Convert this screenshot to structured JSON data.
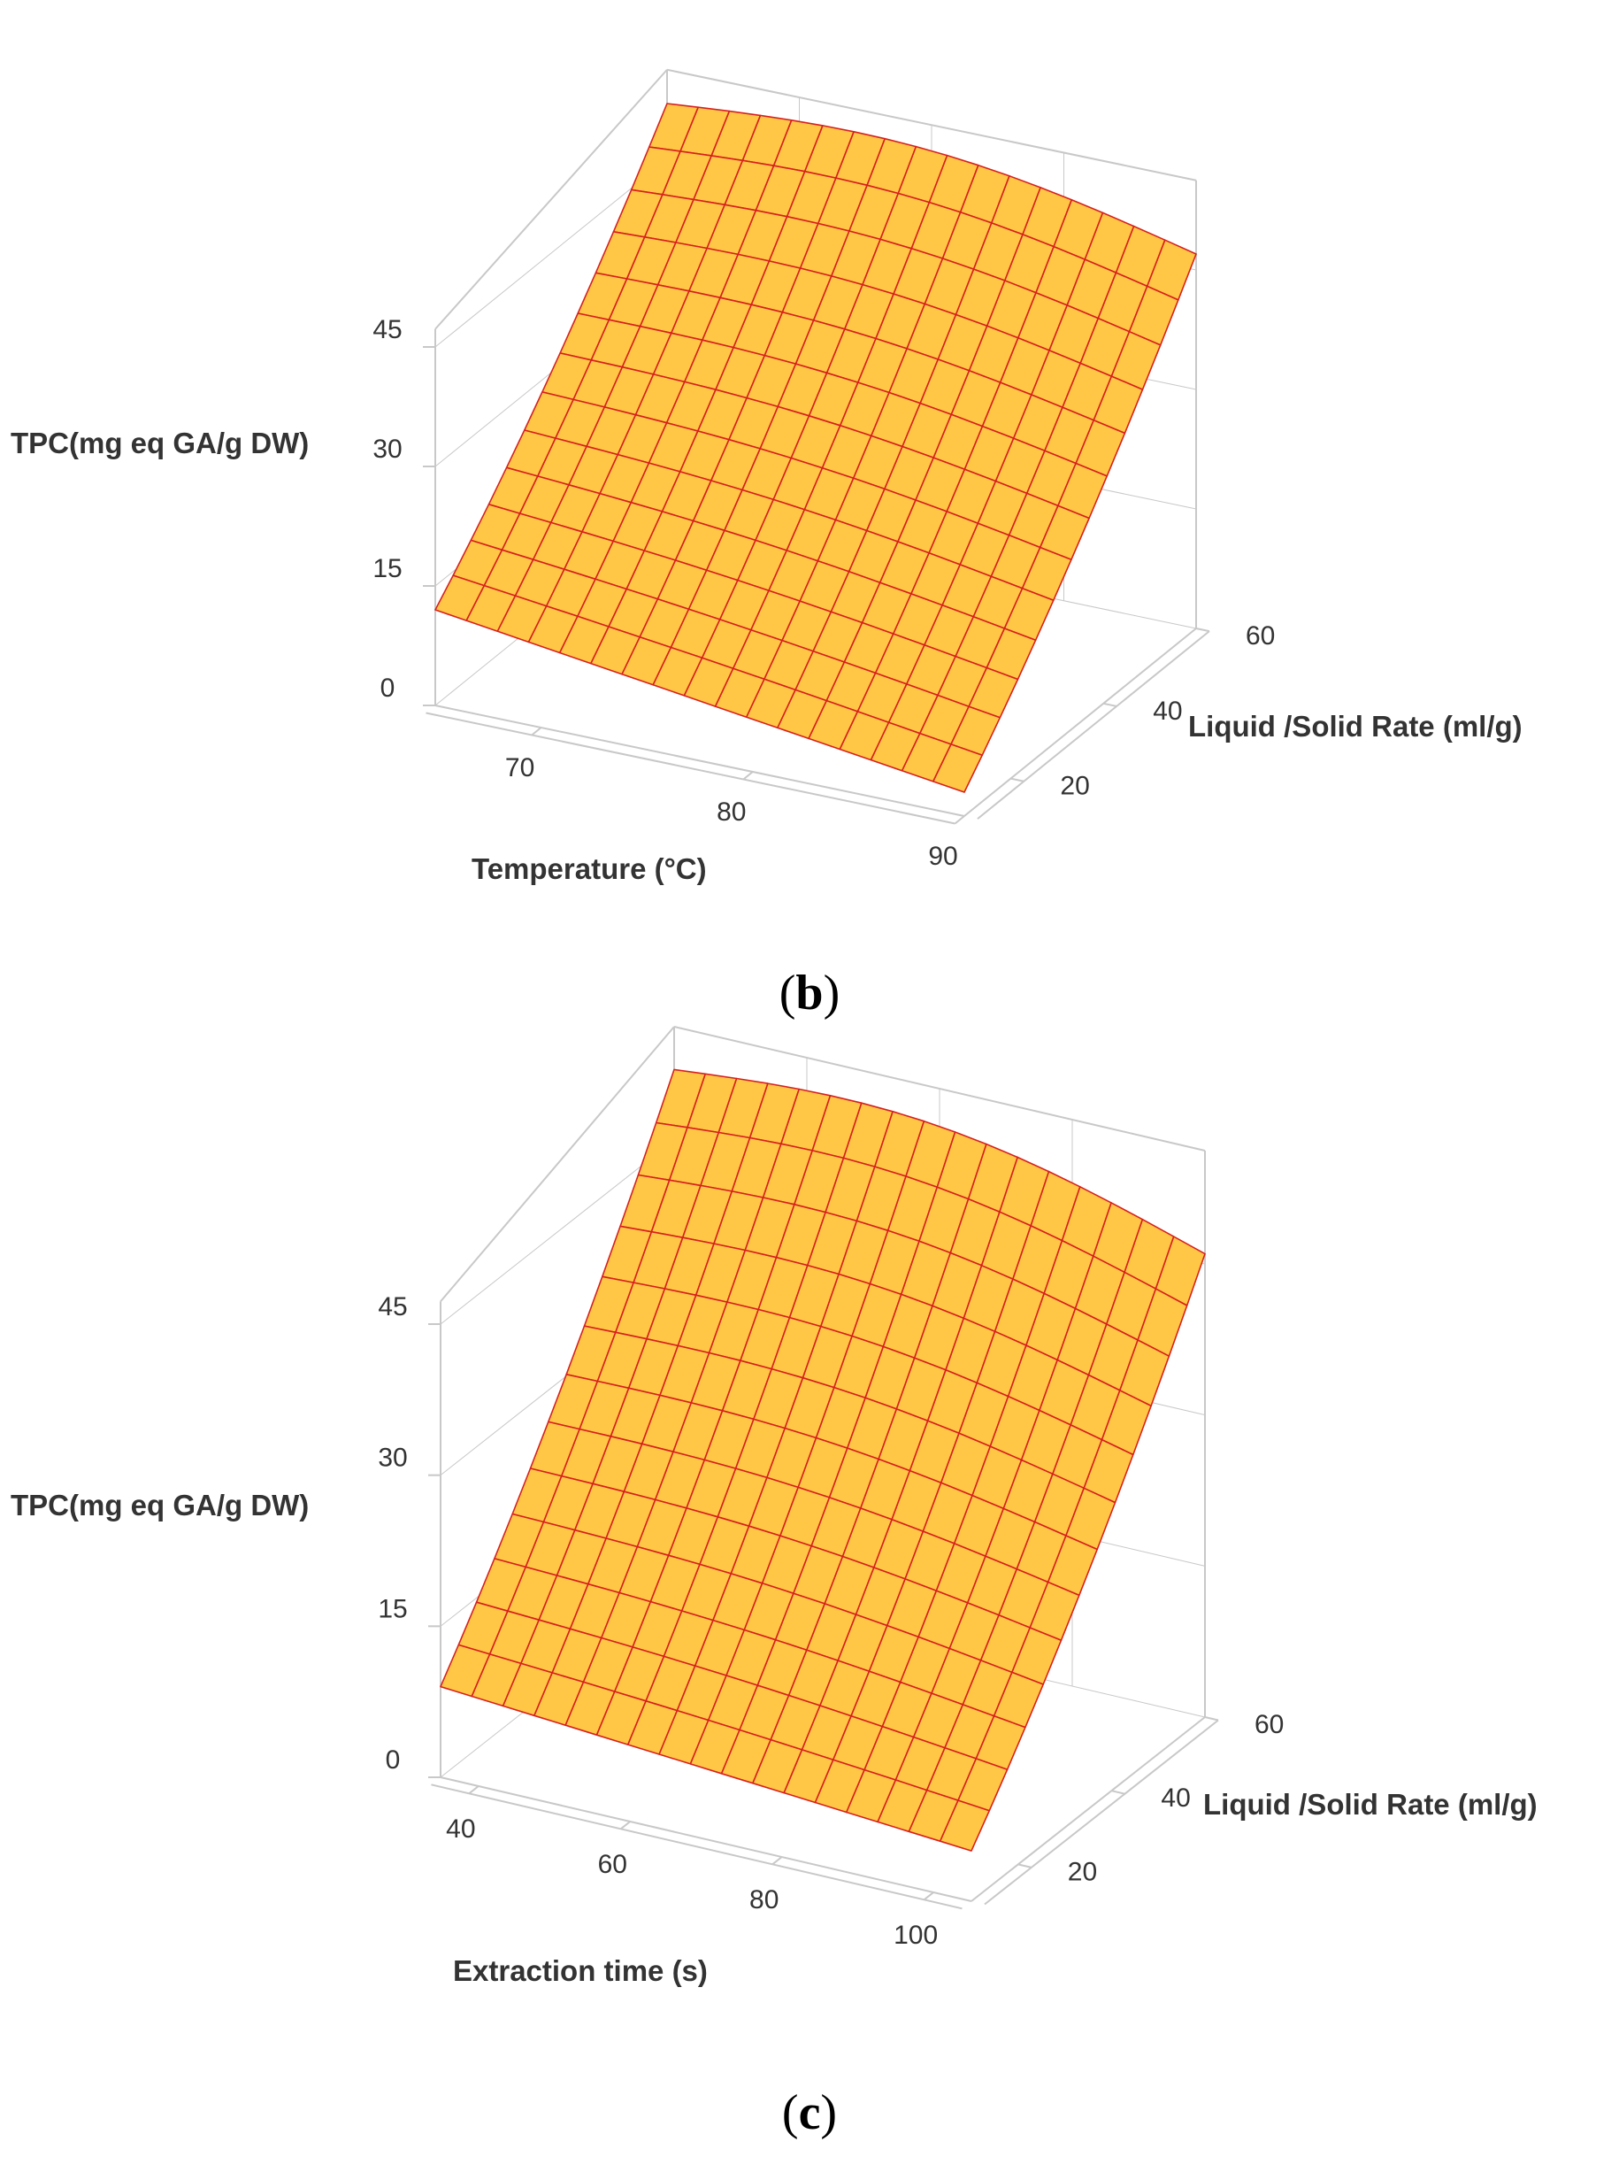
{
  "chart_data": [
    {
      "type": "surface",
      "panel_label": "b",
      "xlabel": "Temperature (°C)",
      "ylabel": "Liquid /Solid Rate (ml/g)",
      "zlabel": "TPC(mg eq GA/g DW)",
      "x_ticks": [
        "70",
        "80",
        "90"
      ],
      "y_ticks": [
        "20",
        "40",
        "60"
      ],
      "z_ticks": [
        "0",
        "15",
        "30",
        "45"
      ],
      "xlim": [
        65,
        90
      ],
      "ylim": [
        10,
        60
      ],
      "zlim": [
        0,
        45
      ],
      "surface": {
        "description_free_grid": true,
        "x": [
          65,
          90
        ],
        "y": [
          10,
          60
        ],
        "corner_z": {
          "x_min_y_min": 12,
          "x_max_y_min": 3,
          "x_min_y_max": 52,
          "x_max_y_max": 47
        },
        "grid_x": 17,
        "grid_y": 13
      },
      "colors": {
        "fill": "#FFC745",
        "mesh": "#D7201E",
        "box": "#C8C8C8"
      }
    },
    {
      "type": "surface",
      "panel_label": "c",
      "xlabel": "Extraction time (s)",
      "ylabel": "Liquid /Solid Rate (ml/g)",
      "zlabel": "TPC(mg eq GA/g DW)",
      "x_ticks": [
        "40",
        "60",
        "80",
        "100"
      ],
      "y_ticks": [
        "20",
        "40",
        "60"
      ],
      "z_ticks": [
        "0",
        "15",
        "30",
        "45"
      ],
      "xlim": [
        35,
        105
      ],
      "ylim": [
        10,
        60
      ],
      "zlim": [
        0,
        45
      ],
      "surface": {
        "x": [
          35,
          105
        ],
        "y": [
          10,
          60
        ],
        "corner_z": {
          "x_min_y_min": 9,
          "x_max_y_min": 5,
          "x_min_y_max": 52,
          "x_max_y_max": 46
        },
        "grid_x": 17,
        "grid_y": 13
      },
      "colors": {
        "fill": "#FFC745",
        "mesh": "#D7201E",
        "box": "#C8C8C8"
      }
    }
  ]
}
